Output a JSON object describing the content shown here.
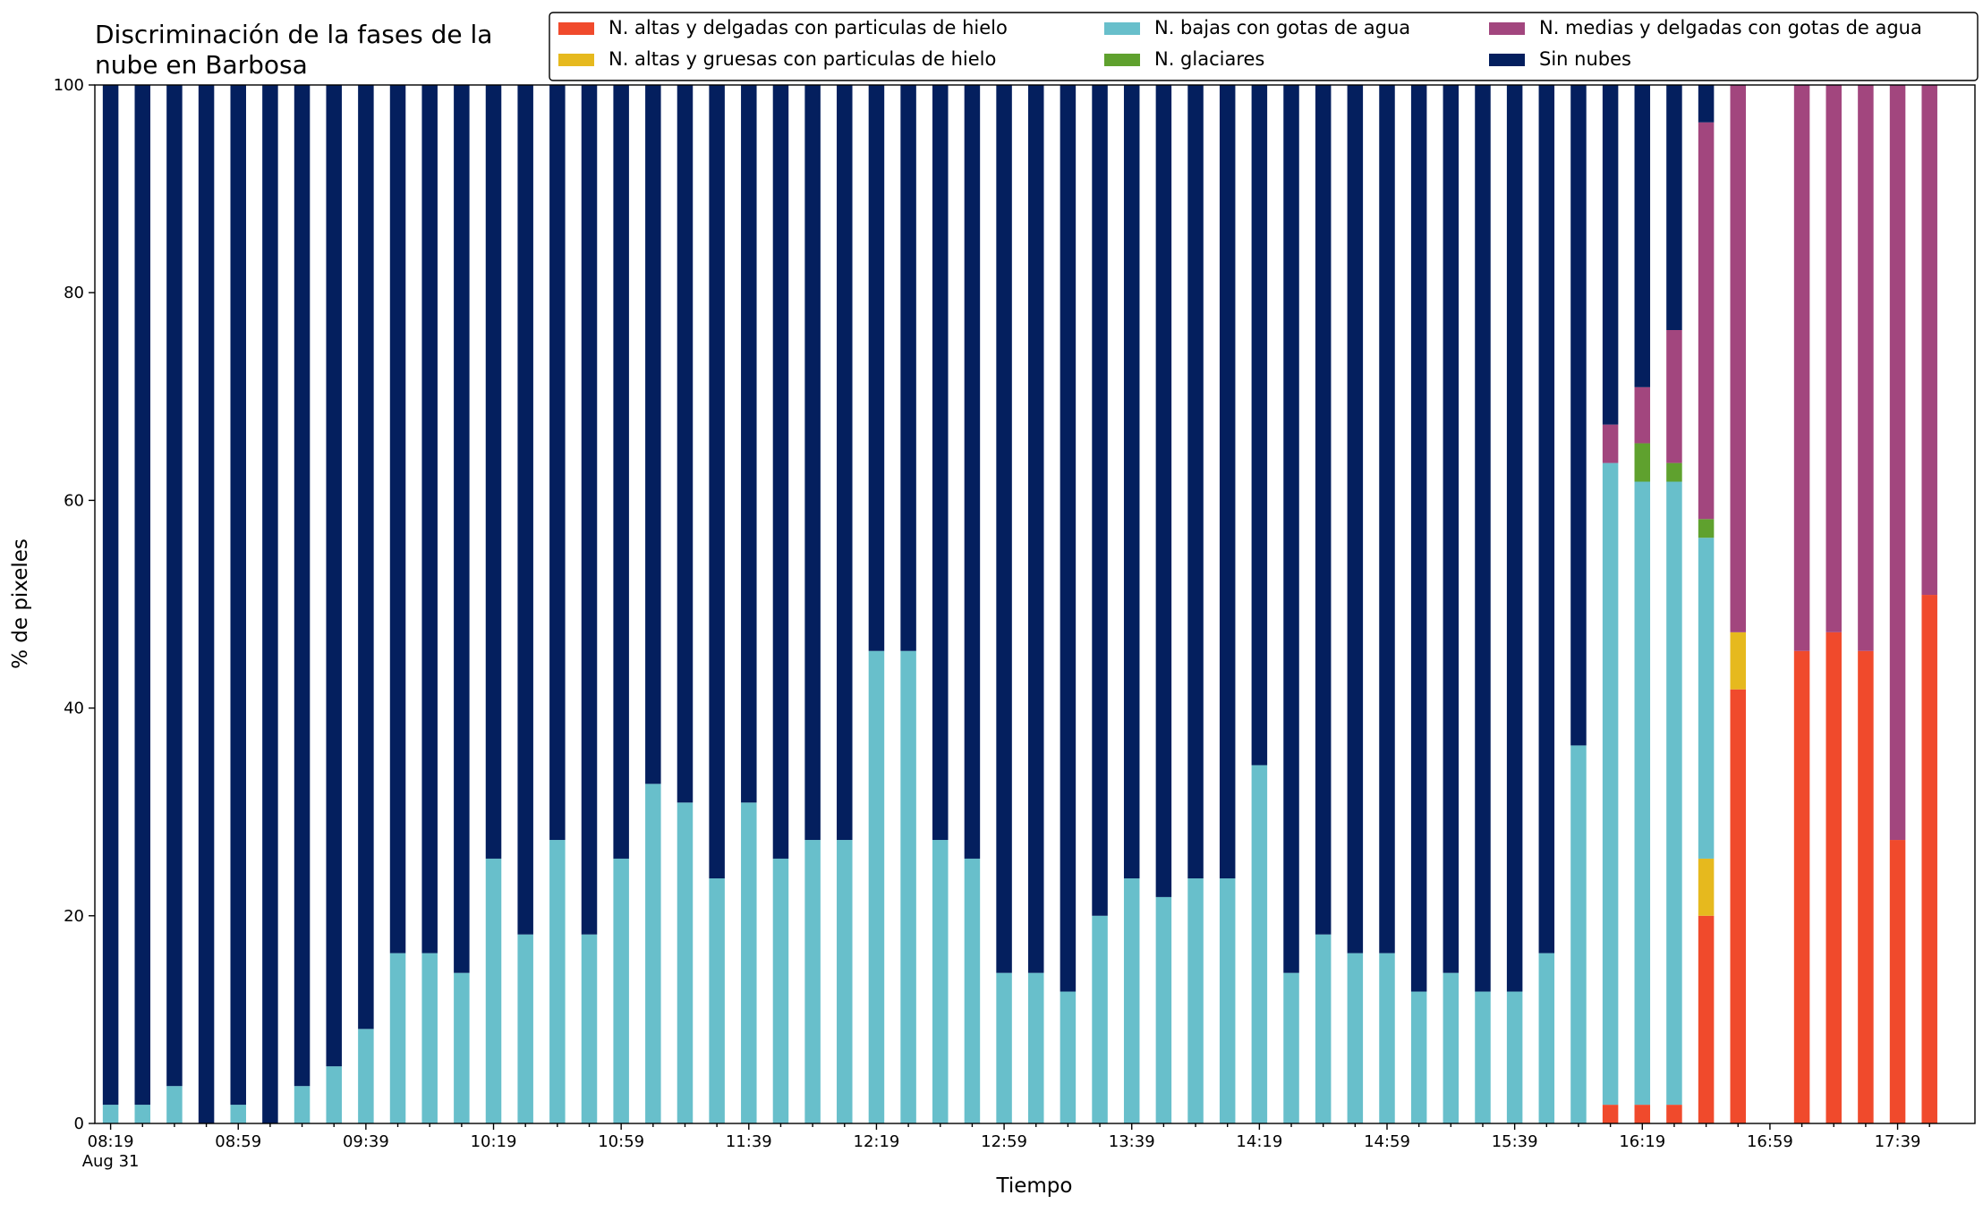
{
  "chart_data": {
    "type": "stacked_bar",
    "title": "Discriminación de la fases de la\nnube en Barbosa",
    "x_label": "Tiempo",
    "y_label": "% de pixeles",
    "x_date_label": "Aug 31",
    "categories": [
      "08:19",
      null,
      null,
      null,
      "08:59",
      null,
      null,
      null,
      "09:39",
      null,
      null,
      null,
      "10:19",
      null,
      null,
      null,
      "10:59",
      null,
      null,
      null,
      "11:39",
      null,
      null,
      null,
      "12:19",
      null,
      null,
      null,
      "12:59",
      null,
      null,
      null,
      "13:39",
      null,
      null,
      null,
      "14:19",
      null,
      null,
      null,
      "14:59",
      null,
      null,
      null,
      "15:39",
      null,
      null,
      null,
      "16:19",
      null,
      null,
      null,
      "16:59",
      null,
      null,
      null,
      "17:39",
      null
    ],
    "ylim": [
      0,
      100
    ],
    "yticks": [
      0,
      20,
      40,
      60,
      80,
      100
    ],
    "legend": "top",
    "series": [
      {
        "name": "N. altas y delgadas con particulas de hielo",
        "color": "#f04a2c",
        "values": [
          0,
          0,
          0,
          0,
          0,
          0,
          0,
          0,
          0,
          0,
          0,
          0,
          0,
          0,
          0,
          0,
          0,
          0,
          0,
          0,
          0,
          0,
          0,
          0,
          0,
          0,
          0,
          0,
          0,
          0,
          0,
          0,
          0,
          0,
          0,
          0,
          0,
          0,
          0,
          0,
          0,
          0,
          0,
          0,
          0,
          0,
          0,
          1.8,
          1.8,
          1.8,
          20,
          41.8,
          null,
          45.5,
          47.3,
          45.5,
          27.3,
          50.9
        ]
      },
      {
        "name": "N. altas y gruesas con particulas de hielo",
        "color": "#e6b91e",
        "values": [
          0,
          0,
          0,
          0,
          0,
          0,
          0,
          0,
          0,
          0,
          0,
          0,
          0,
          0,
          0,
          0,
          0,
          0,
          0,
          0,
          0,
          0,
          0,
          0,
          0,
          0,
          0,
          0,
          0,
          0,
          0,
          0,
          0,
          0,
          0,
          0,
          0,
          0,
          0,
          0,
          0,
          0,
          0,
          0,
          0,
          0,
          0,
          0,
          0,
          0,
          5.5,
          5.5,
          null,
          0,
          0,
          0,
          0,
          0
        ]
      },
      {
        "name": "N. bajas con gotas de agua",
        "color": "#68bfcb",
        "values": [
          1.8,
          1.8,
          3.6,
          0,
          1.8,
          0,
          3.6,
          5.5,
          9.1,
          16.4,
          16.4,
          14.5,
          25.5,
          18.2,
          27.3,
          18.2,
          25.5,
          32.7,
          30.9,
          23.6,
          30.9,
          25.5,
          27.3,
          27.3,
          45.5,
          45.5,
          27.3,
          25.5,
          14.5,
          14.5,
          12.7,
          20,
          23.6,
          21.8,
          23.6,
          23.6,
          34.5,
          14.5,
          18.2,
          16.4,
          16.4,
          12.7,
          14.5,
          12.7,
          12.7,
          16.4,
          36.4,
          61.8,
          60,
          60,
          30.9,
          0,
          null,
          0,
          0,
          0,
          0,
          0
        ]
      },
      {
        "name": "N. glaciares",
        "color": "#5fa12e",
        "values": [
          0,
          0,
          0,
          0,
          0,
          0,
          0,
          0,
          0,
          0,
          0,
          0,
          0,
          0,
          0,
          0,
          0,
          0,
          0,
          0,
          0,
          0,
          0,
          0,
          0,
          0,
          0,
          0,
          0,
          0,
          0,
          0,
          0,
          0,
          0,
          0,
          0,
          0,
          0,
          0,
          0,
          0,
          0,
          0,
          0,
          0,
          0,
          0,
          3.7,
          1.8,
          1.8,
          0,
          null,
          0,
          0,
          0,
          0,
          0
        ]
      },
      {
        "name": "N. medias y delgadas con gotas de agua",
        "color": "#a2467e",
        "values": [
          0,
          0,
          0,
          0,
          0,
          0,
          0,
          0,
          0,
          0,
          0,
          0,
          0,
          0,
          0,
          0,
          0,
          0,
          0,
          0,
          0,
          0,
          0,
          0,
          0,
          0,
          0,
          0,
          0,
          0,
          0,
          0,
          0,
          0,
          0,
          0,
          0,
          0,
          0,
          0,
          0,
          0,
          0,
          0,
          0,
          0,
          0,
          3.7,
          5.4,
          12.8,
          38.2,
          52.7,
          null,
          54.5,
          52.7,
          54.5,
          72.7,
          49.1
        ]
      },
      {
        "name": "Sin nubes",
        "color": "#041f5e",
        "values": [
          98.2,
          98.2,
          96.4,
          100,
          98.2,
          100,
          96.4,
          94.5,
          90.9,
          83.6,
          83.6,
          85.5,
          74.5,
          81.8,
          72.7,
          81.8,
          74.5,
          67.3,
          69.1,
          76.4,
          69.1,
          74.5,
          72.7,
          72.7,
          54.5,
          54.5,
          72.7,
          74.5,
          85.5,
          85.5,
          87.3,
          80,
          76.4,
          78.2,
          76.4,
          76.4,
          65.5,
          85.5,
          81.8,
          83.6,
          83.6,
          87.3,
          85.5,
          87.3,
          87.3,
          83.6,
          63.6,
          32.7,
          29.1,
          23.6,
          3.6,
          0,
          null,
          0,
          0,
          0,
          0,
          0
        ]
      }
    ]
  }
}
